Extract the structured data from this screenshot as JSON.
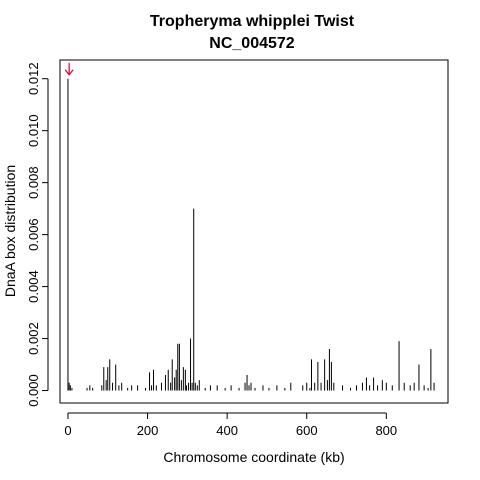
{
  "chart_data": {
    "type": "bar",
    "title": "Tropheryma whipplei Twist",
    "subtitle": "NC_004572",
    "xlabel": "Chromosome coordinate (kb)",
    "ylabel": "DnaA box distribution",
    "xlim": [
      -20,
      955
    ],
    "ylim": [
      -0.00048,
      0.01272
    ],
    "xticks": [
      0,
      200,
      400,
      600,
      800
    ],
    "yticks": [
      0.0,
      0.002,
      0.004,
      0.006,
      0.008,
      0.01,
      0.012
    ],
    "ytick_labels": [
      "0.000",
      "0.002",
      "0.004",
      "0.006",
      "0.008",
      "0.010",
      "0.012"
    ],
    "grid": false,
    "legend": "none",
    "bar_color": "#000000",
    "arrow_color": "#d9002f",
    "arrow_x": 3,
    "x": [
      0,
      3,
      6,
      10,
      48,
      55,
      62,
      85,
      90,
      96,
      100,
      105,
      112,
      120,
      128,
      135,
      150,
      160,
      175,
      195,
      205,
      210,
      215,
      222,
      235,
      245,
      252,
      258,
      262,
      268,
      272,
      276,
      280,
      285,
      290,
      295,
      298,
      303,
      308,
      312,
      316,
      320,
      325,
      330,
      345,
      358,
      375,
      395,
      410,
      430,
      445,
      450,
      455,
      460,
      470,
      490,
      505,
      525,
      545,
      560,
      590,
      600,
      608,
      612,
      620,
      628,
      636,
      645,
      652,
      657,
      662,
      668,
      690,
      710,
      725,
      740,
      750,
      758,
      768,
      778,
      790,
      800,
      815,
      832,
      845,
      860,
      870,
      882,
      895,
      905,
      912,
      920
    ],
    "values": [
      0.012,
      0.0003,
      0.0002,
      0.0001,
      0.0001,
      0.0002,
      0.0001,
      0.0002,
      0.0009,
      0.0004,
      0.0009,
      0.0012,
      0.0003,
      0.001,
      0.0002,
      0.0003,
      0.0001,
      0.0002,
      0.0002,
      0.0001,
      0.0007,
      0.0002,
      0.0008,
      0.0002,
      0.0003,
      0.0006,
      0.0008,
      0.0003,
      0.0012,
      0.0005,
      0.0008,
      0.0018,
      0.0018,
      0.0004,
      0.0009,
      0.0008,
      0.0002,
      0.0003,
      0.002,
      0.0003,
      0.007,
      0.0003,
      0.0002,
      0.0004,
      0.0001,
      0.0002,
      0.0002,
      0.0001,
      0.0002,
      0.0001,
      0.0003,
      0.0006,
      0.0002,
      0.0003,
      0.0001,
      0.0002,
      0.0001,
      0.0002,
      0.0001,
      0.0003,
      0.0002,
      0.0003,
      0.0001,
      0.0012,
      0.0003,
      0.0011,
      0.0003,
      0.0012,
      0.0004,
      0.0016,
      0.0011,
      0.0003,
      0.0002,
      0.0001,
      0.0002,
      0.0003,
      0.0005,
      0.0002,
      0.0005,
      0.0002,
      0.0004,
      0.0003,
      0.0002,
      0.0019,
      0.0003,
      0.0002,
      0.0003,
      0.001,
      0.0002,
      0.0001,
      0.0016,
      0.0003
    ]
  }
}
